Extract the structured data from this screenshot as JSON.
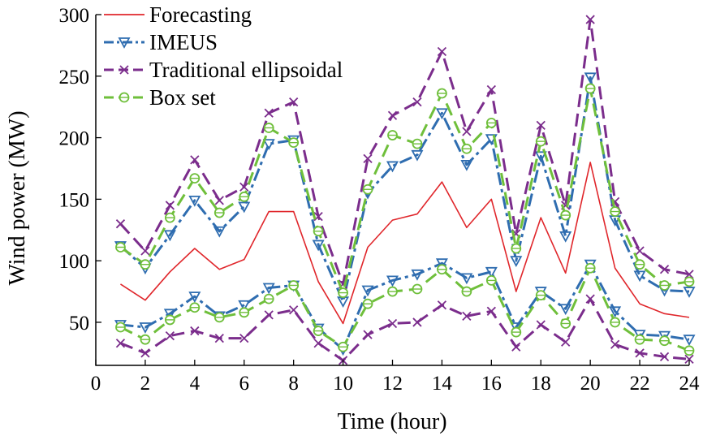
{
  "chart_data": {
    "type": "line",
    "xlabel": "Time (hour)",
    "ylabel": "Wind power (MW)",
    "xlim": [
      0,
      24
    ],
    "ylim": [
      15,
      300
    ],
    "xticks": [
      0,
      2,
      4,
      6,
      8,
      10,
      12,
      14,
      16,
      18,
      20,
      22,
      24
    ],
    "yticks": [
      50,
      100,
      150,
      200,
      250,
      300
    ],
    "grid": false,
    "legend_position": "top-left",
    "x": [
      1,
      2,
      3,
      4,
      5,
      6,
      7,
      8,
      9,
      10,
      11,
      12,
      13,
      14,
      15,
      16,
      17,
      18,
      19,
      20,
      21,
      22,
      23,
      24
    ],
    "series": [
      {
        "name": "Forecasting",
        "color": "#e0262b",
        "style": "solid",
        "marker": "none",
        "bands": [
          [
            81,
            68,
            91,
            110,
            93,
            101,
            140,
            140,
            83,
            49,
            111,
            133,
            138,
            164,
            127,
            150,
            75,
            135,
            90,
            180,
            94,
            65,
            57,
            54
          ]
        ]
      },
      {
        "name": "IMEUS",
        "color": "#2f6db0",
        "style": "dashdot",
        "marker": "triangle-down",
        "bands": [
          [
            112,
            94,
            121,
            149,
            124,
            144,
            195,
            198,
            113,
            67,
            155,
            177,
            186,
            220,
            178,
            199,
            100,
            185,
            120,
            249,
            133,
            88,
            76,
            75
          ],
          [
            48,
            46,
            57,
            71,
            55,
            64,
            78,
            80,
            45,
            28,
            76,
            84,
            89,
            98,
            86,
            91,
            46,
            75,
            61,
            97,
            59,
            40,
            39,
            36
          ]
        ]
      },
      {
        "name": "Traditional ellipsoidal",
        "color": "#7b2d8c",
        "style": "dashed",
        "marker": "x",
        "bands": [
          [
            130,
            108,
            145,
            182,
            149,
            160,
            220,
            229,
            136,
            81,
            183,
            218,
            229,
            270,
            205,
            239,
            122,
            210,
            145,
            296,
            148,
            108,
            93,
            89
          ],
          [
            33,
            25,
            39,
            43,
            37,
            37,
            56,
            60,
            33,
            19,
            40,
            49,
            50,
            64,
            55,
            59,
            30,
            48,
            34,
            69,
            32,
            25,
            22,
            20
          ]
        ]
      },
      {
        "name": "Box set",
        "color": "#6fbf3b",
        "style": "dashed",
        "marker": "circle",
        "bands": [
          [
            111,
            97,
            135,
            167,
            139,
            152,
            208,
            196,
            124,
            74,
            158,
            202,
            195,
            236,
            191,
            212,
            110,
            197,
            137,
            240,
            140,
            97,
            80,
            83
          ],
          [
            46,
            36,
            52,
            62,
            54,
            58,
            69,
            80,
            43,
            30,
            65,
            75,
            77,
            93,
            75,
            84,
            42,
            72,
            49,
            94,
            50,
            36,
            35,
            27
          ]
        ]
      }
    ]
  }
}
